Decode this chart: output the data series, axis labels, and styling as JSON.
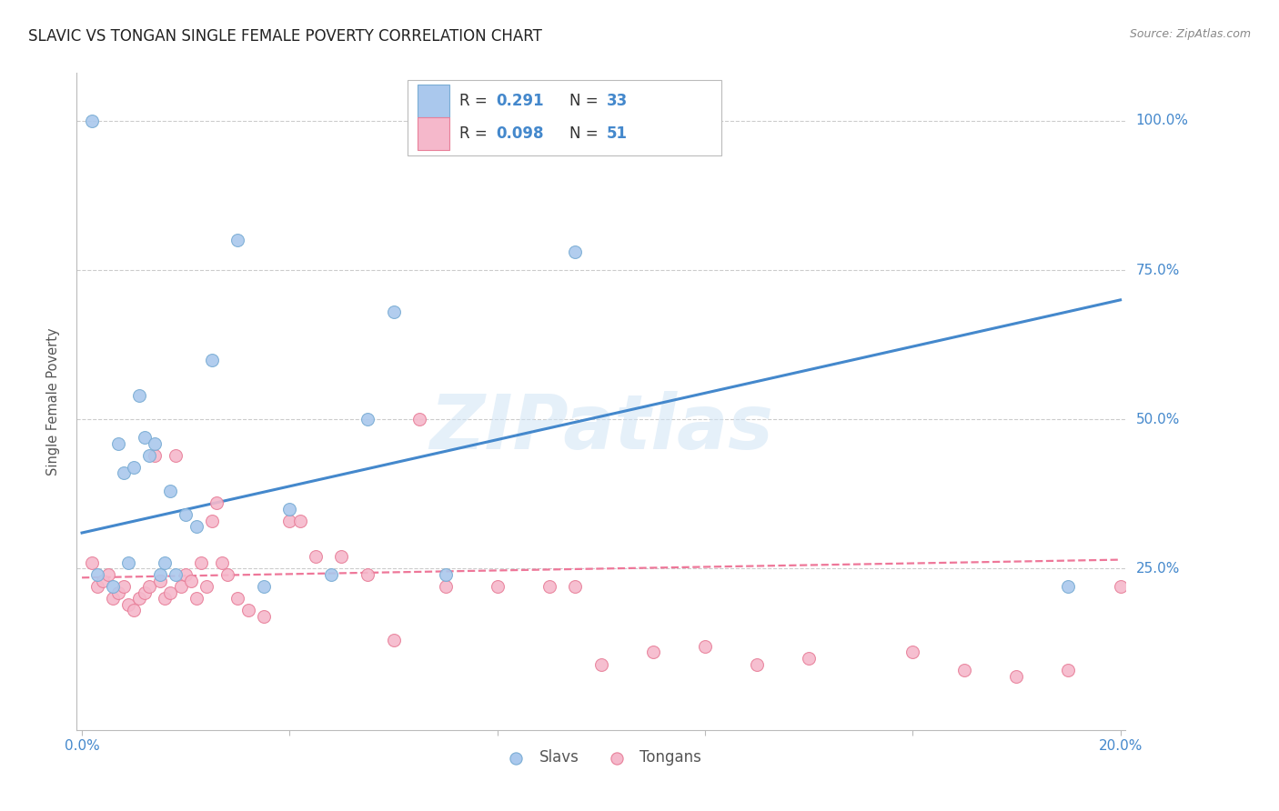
{
  "title": "SLAVIC VS TONGAN SINGLE FEMALE POVERTY CORRELATION CHART",
  "source": "Source: ZipAtlas.com",
  "ylabel": "Single Female Poverty",
  "watermark": "ZIPatlas",
  "slavs_color": "#aac8ed",
  "slavs_edgecolor": "#7aadd4",
  "tongans_color": "#f5b8cb",
  "tongans_edgecolor": "#e8809a",
  "slavs_line_color": "#4488cc",
  "tongans_line_color": "#ee7799",
  "tick_color": "#4488cc",
  "grid_color": "#cccccc",
  "background_color": "#ffffff",
  "title_fontsize": 12,
  "legend_text_color": "#333333",
  "legend_value_color": "#4488cc",
  "slavs_x": [
    0.002,
    0.003,
    0.006,
    0.007,
    0.008,
    0.009,
    0.01,
    0.011,
    0.012,
    0.013,
    0.014,
    0.015,
    0.016,
    0.017,
    0.018,
    0.02,
    0.022,
    0.025,
    0.03,
    0.035,
    0.04,
    0.048,
    0.055,
    0.06,
    0.07,
    0.095,
    0.19
  ],
  "slavs_y": [
    1.0,
    0.24,
    0.22,
    0.46,
    0.41,
    0.26,
    0.42,
    0.54,
    0.47,
    0.44,
    0.46,
    0.24,
    0.26,
    0.38,
    0.24,
    0.34,
    0.32,
    0.6,
    0.8,
    0.22,
    0.35,
    0.24,
    0.5,
    0.68,
    0.24,
    0.78,
    0.22
  ],
  "tongans_x": [
    0.002,
    0.003,
    0.004,
    0.005,
    0.006,
    0.007,
    0.008,
    0.009,
    0.01,
    0.011,
    0.012,
    0.013,
    0.014,
    0.015,
    0.016,
    0.017,
    0.018,
    0.019,
    0.02,
    0.021,
    0.022,
    0.023,
    0.024,
    0.025,
    0.026,
    0.027,
    0.028,
    0.03,
    0.032,
    0.035,
    0.04,
    0.042,
    0.045,
    0.05,
    0.055,
    0.06,
    0.065,
    0.07,
    0.08,
    0.09,
    0.095,
    0.1,
    0.11,
    0.12,
    0.13,
    0.14,
    0.16,
    0.17,
    0.18,
    0.19,
    0.2
  ],
  "tongans_y": [
    0.26,
    0.22,
    0.23,
    0.24,
    0.2,
    0.21,
    0.22,
    0.19,
    0.18,
    0.2,
    0.21,
    0.22,
    0.44,
    0.23,
    0.2,
    0.21,
    0.44,
    0.22,
    0.24,
    0.23,
    0.2,
    0.26,
    0.22,
    0.33,
    0.36,
    0.26,
    0.24,
    0.2,
    0.18,
    0.17,
    0.33,
    0.33,
    0.27,
    0.27,
    0.24,
    0.13,
    0.5,
    0.22,
    0.22,
    0.22,
    0.22,
    0.09,
    0.11,
    0.12,
    0.09,
    0.1,
    0.11,
    0.08,
    0.07,
    0.08,
    0.22
  ],
  "slavs_line_x0": 0.0,
  "slavs_line_x1": 0.2,
  "slavs_line_y0": 0.31,
  "slavs_line_y1": 0.7,
  "tongans_line_x0": 0.0,
  "tongans_line_x1": 0.2,
  "tongans_line_y0": 0.235,
  "tongans_line_y1": 0.265,
  "xmin": -0.001,
  "xmax": 0.201,
  "ymin": -0.02,
  "ymax": 1.08,
  "marker_size": 100
}
